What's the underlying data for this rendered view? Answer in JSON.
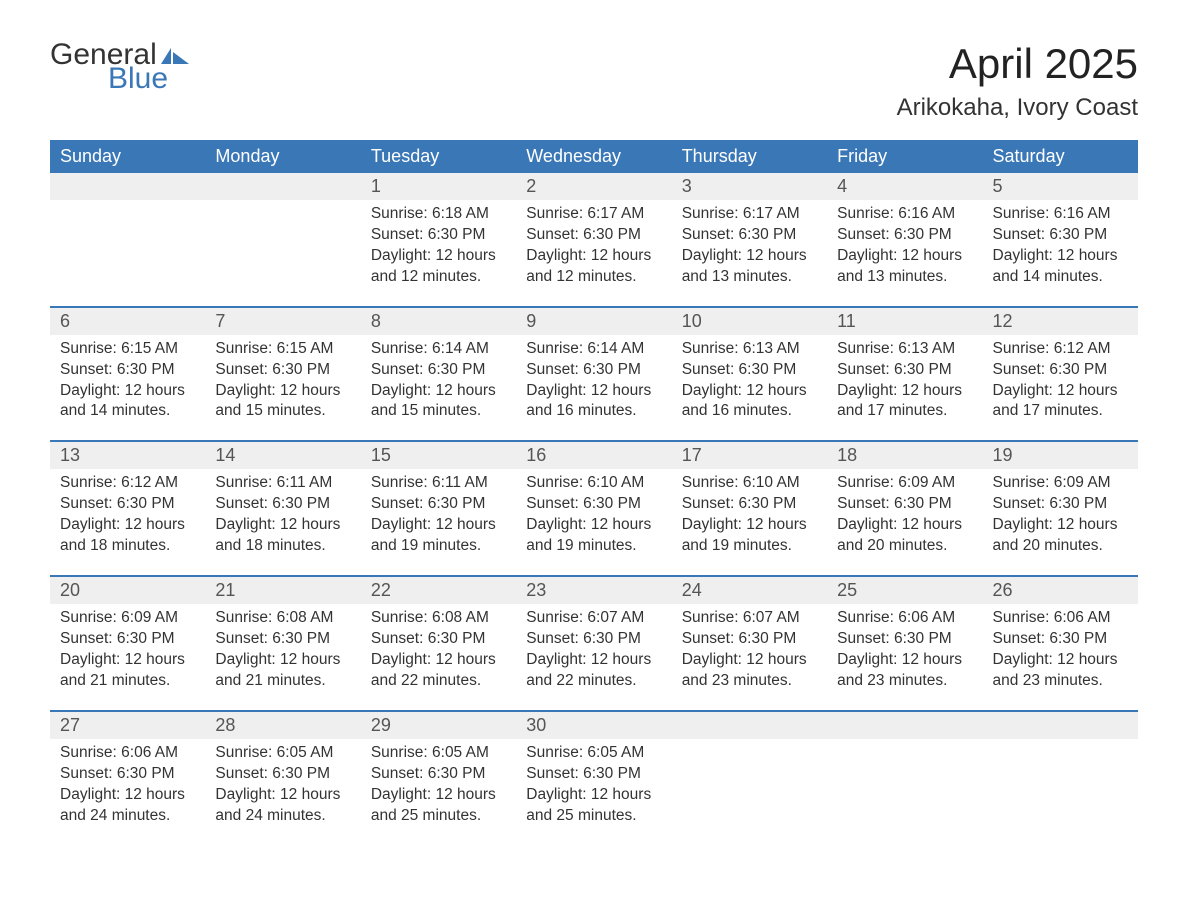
{
  "logo": {
    "word1": "General",
    "word2": "Blue",
    "flag_color": "#3a77b7"
  },
  "title": "April 2025",
  "location": "Arikokaha, Ivory Coast",
  "colors": {
    "header_bg": "#3a77b7",
    "header_text": "#ffffff",
    "daynum_bg": "#efefef",
    "row_border": "#3a77b7",
    "body_text": "#333333",
    "bg": "#ffffff"
  },
  "day_headers": [
    "Sunday",
    "Monday",
    "Tuesday",
    "Wednesday",
    "Thursday",
    "Friday",
    "Saturday"
  ],
  "weeks": [
    [
      null,
      null,
      {
        "n": "1",
        "sunrise": "6:18 AM",
        "sunset": "6:30 PM",
        "daylight": "12 hours and 12 minutes."
      },
      {
        "n": "2",
        "sunrise": "6:17 AM",
        "sunset": "6:30 PM",
        "daylight": "12 hours and 12 minutes."
      },
      {
        "n": "3",
        "sunrise": "6:17 AM",
        "sunset": "6:30 PM",
        "daylight": "12 hours and 13 minutes."
      },
      {
        "n": "4",
        "sunrise": "6:16 AM",
        "sunset": "6:30 PM",
        "daylight": "12 hours and 13 minutes."
      },
      {
        "n": "5",
        "sunrise": "6:16 AM",
        "sunset": "6:30 PM",
        "daylight": "12 hours and 14 minutes."
      }
    ],
    [
      {
        "n": "6",
        "sunrise": "6:15 AM",
        "sunset": "6:30 PM",
        "daylight": "12 hours and 14 minutes."
      },
      {
        "n": "7",
        "sunrise": "6:15 AM",
        "sunset": "6:30 PM",
        "daylight": "12 hours and 15 minutes."
      },
      {
        "n": "8",
        "sunrise": "6:14 AM",
        "sunset": "6:30 PM",
        "daylight": "12 hours and 15 minutes."
      },
      {
        "n": "9",
        "sunrise": "6:14 AM",
        "sunset": "6:30 PM",
        "daylight": "12 hours and 16 minutes."
      },
      {
        "n": "10",
        "sunrise": "6:13 AM",
        "sunset": "6:30 PM",
        "daylight": "12 hours and 16 minutes."
      },
      {
        "n": "11",
        "sunrise": "6:13 AM",
        "sunset": "6:30 PM",
        "daylight": "12 hours and 17 minutes."
      },
      {
        "n": "12",
        "sunrise": "6:12 AM",
        "sunset": "6:30 PM",
        "daylight": "12 hours and 17 minutes."
      }
    ],
    [
      {
        "n": "13",
        "sunrise": "6:12 AM",
        "sunset": "6:30 PM",
        "daylight": "12 hours and 18 minutes."
      },
      {
        "n": "14",
        "sunrise": "6:11 AM",
        "sunset": "6:30 PM",
        "daylight": "12 hours and 18 minutes."
      },
      {
        "n": "15",
        "sunrise": "6:11 AM",
        "sunset": "6:30 PM",
        "daylight": "12 hours and 19 minutes."
      },
      {
        "n": "16",
        "sunrise": "6:10 AM",
        "sunset": "6:30 PM",
        "daylight": "12 hours and 19 minutes."
      },
      {
        "n": "17",
        "sunrise": "6:10 AM",
        "sunset": "6:30 PM",
        "daylight": "12 hours and 19 minutes."
      },
      {
        "n": "18",
        "sunrise": "6:09 AM",
        "sunset": "6:30 PM",
        "daylight": "12 hours and 20 minutes."
      },
      {
        "n": "19",
        "sunrise": "6:09 AM",
        "sunset": "6:30 PM",
        "daylight": "12 hours and 20 minutes."
      }
    ],
    [
      {
        "n": "20",
        "sunrise": "6:09 AM",
        "sunset": "6:30 PM",
        "daylight": "12 hours and 21 minutes."
      },
      {
        "n": "21",
        "sunrise": "6:08 AM",
        "sunset": "6:30 PM",
        "daylight": "12 hours and 21 minutes."
      },
      {
        "n": "22",
        "sunrise": "6:08 AM",
        "sunset": "6:30 PM",
        "daylight": "12 hours and 22 minutes."
      },
      {
        "n": "23",
        "sunrise": "6:07 AM",
        "sunset": "6:30 PM",
        "daylight": "12 hours and 22 minutes."
      },
      {
        "n": "24",
        "sunrise": "6:07 AM",
        "sunset": "6:30 PM",
        "daylight": "12 hours and 23 minutes."
      },
      {
        "n": "25",
        "sunrise": "6:06 AM",
        "sunset": "6:30 PM",
        "daylight": "12 hours and 23 minutes."
      },
      {
        "n": "26",
        "sunrise": "6:06 AM",
        "sunset": "6:30 PM",
        "daylight": "12 hours and 23 minutes."
      }
    ],
    [
      {
        "n": "27",
        "sunrise": "6:06 AM",
        "sunset": "6:30 PM",
        "daylight": "12 hours and 24 minutes."
      },
      {
        "n": "28",
        "sunrise": "6:05 AM",
        "sunset": "6:30 PM",
        "daylight": "12 hours and 24 minutes."
      },
      {
        "n": "29",
        "sunrise": "6:05 AM",
        "sunset": "6:30 PM",
        "daylight": "12 hours and 25 minutes."
      },
      {
        "n": "30",
        "sunrise": "6:05 AM",
        "sunset": "6:30 PM",
        "daylight": "12 hours and 25 minutes."
      },
      null,
      null,
      null
    ]
  ],
  "labels": {
    "sunrise": "Sunrise: ",
    "sunset": "Sunset: ",
    "daylight": "Daylight: "
  }
}
